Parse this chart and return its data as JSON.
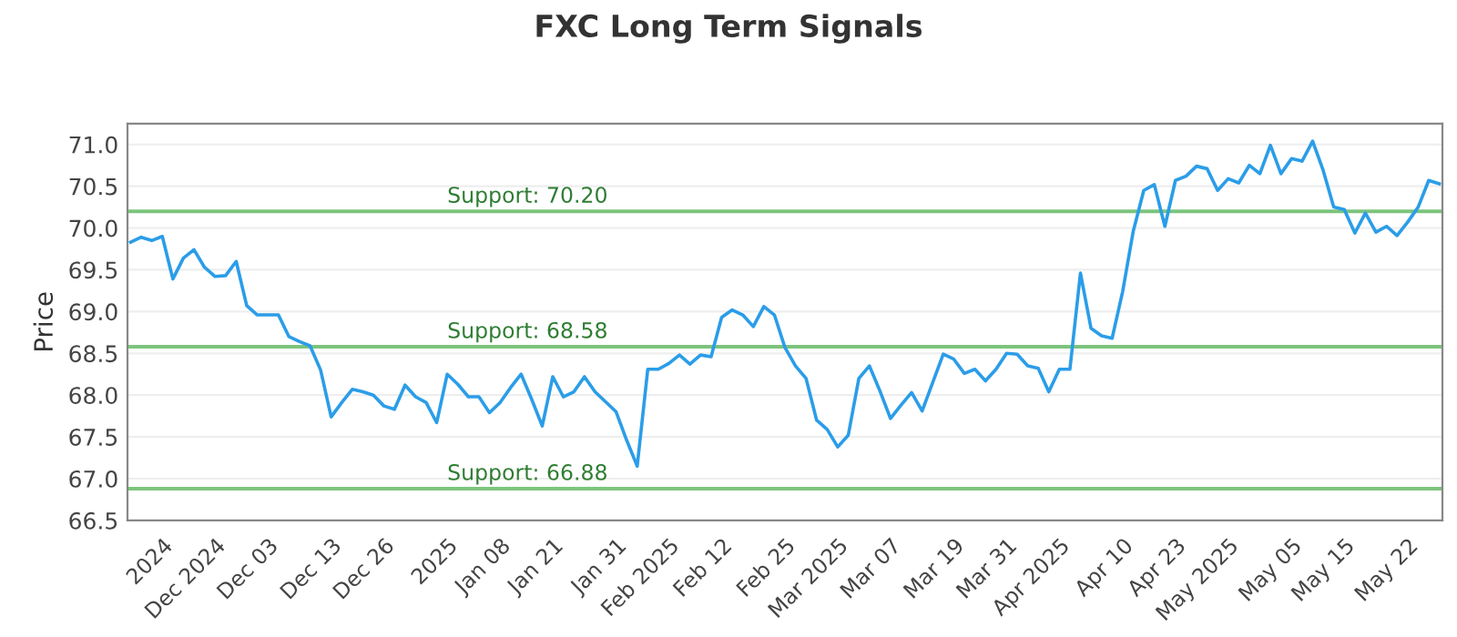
{
  "chart_data": {
    "type": "line",
    "title": "FXC Long Term Signals",
    "ylabel": "Price",
    "categories": [
      null,
      null,
      null,
      "2024",
      null,
      null,
      null,
      null,
      "Dec 2024",
      null,
      null,
      null,
      null,
      "Dec 03",
      null,
      null,
      null,
      null,
      null,
      "Dec 13",
      null,
      null,
      null,
      null,
      "Dec 26",
      null,
      null,
      null,
      null,
      null,
      "2025",
      null,
      null,
      null,
      null,
      "Jan 08",
      null,
      null,
      null,
      null,
      "Jan 21",
      null,
      null,
      null,
      null,
      null,
      "Jan 31",
      null,
      null,
      null,
      null,
      "Feb 2025",
      null,
      null,
      null,
      null,
      "Feb 12",
      null,
      null,
      null,
      null,
      null,
      "Feb 25",
      null,
      null,
      null,
      null,
      "Mar 2025",
      null,
      null,
      null,
      null,
      "Mar 07",
      null,
      null,
      null,
      null,
      null,
      "Mar 19",
      null,
      null,
      null,
      null,
      "Mar 31",
      null,
      null,
      null,
      null,
      "Apr 2025",
      null,
      null,
      null,
      null,
      null,
      "Apr 10",
      null,
      null,
      null,
      null,
      "Apr 23",
      null,
      null,
      null,
      null,
      "May 2025",
      null,
      null,
      null,
      null,
      null,
      "May 05",
      null,
      null,
      null,
      null,
      "May 15",
      null,
      null,
      null,
      null,
      null,
      "May 22",
      null,
      null,
      null
    ],
    "series": [
      {
        "color": "#2b9de8",
        "values": [
          69.83,
          69.89,
          69.85,
          69.9,
          69.39,
          69.64,
          69.74,
          69.53,
          69.42,
          69.43,
          69.6,
          69.07,
          68.96,
          68.96,
          68.96,
          68.7,
          68.64,
          68.59,
          68.3,
          67.74,
          67.91,
          68.07,
          68.04,
          68.0,
          67.87,
          67.83,
          68.12,
          67.98,
          67.91,
          67.67,
          68.25,
          68.13,
          67.98,
          67.98,
          67.79,
          67.91,
          68.09,
          68.25,
          67.95,
          67.63,
          68.22,
          67.98,
          68.04,
          68.22,
          68.04,
          67.92,
          67.8,
          67.46,
          67.15,
          68.31,
          68.31,
          68.38,
          68.48,
          68.37,
          68.48,
          68.46,
          68.93,
          69.02,
          68.96,
          68.82,
          69.06,
          68.96,
          68.57,
          68.35,
          68.2,
          67.7,
          67.59,
          67.38,
          67.52,
          68.2,
          68.35,
          68.05,
          67.72,
          67.88,
          68.03,
          67.81,
          68.15,
          68.49,
          68.43,
          68.26,
          68.31,
          68.17,
          68.31,
          68.5,
          68.49,
          68.35,
          68.32,
          68.04,
          68.31,
          68.31,
          69.46,
          68.8,
          68.71,
          68.68,
          69.24,
          69.96,
          70.45,
          70.52,
          70.02,
          70.57,
          70.62,
          70.74,
          70.71,
          70.45,
          70.59,
          70.54,
          70.75,
          70.65,
          70.99,
          70.65,
          70.83,
          70.8,
          71.04,
          70.69,
          70.25,
          70.22,
          69.94,
          70.18,
          69.95,
          70.02,
          69.91,
          70.07,
          70.25,
          70.57,
          70.53
        ]
      }
    ],
    "ylim": [
      66.5,
      71.25
    ],
    "yticks": [
      "66.5",
      "67.0",
      "67.5",
      "68.0",
      "68.5",
      "69.0",
      "69.5",
      "70.0",
      "70.5",
      "71.0"
    ],
    "ref_lines": [
      {
        "axis": "y",
        "value": 70.2,
        "label": "Support: 70.20",
        "color": "#7cc47c"
      },
      {
        "axis": "y",
        "value": 68.58,
        "label": "Support: 68.58",
        "color": "#7cc47c"
      },
      {
        "axis": "y",
        "value": 66.88,
        "label": "Support: 66.88",
        "color": "#7cc47c"
      }
    ],
    "grid": "y",
    "legend": false,
    "marker": "none",
    "line_style": "solid"
  }
}
